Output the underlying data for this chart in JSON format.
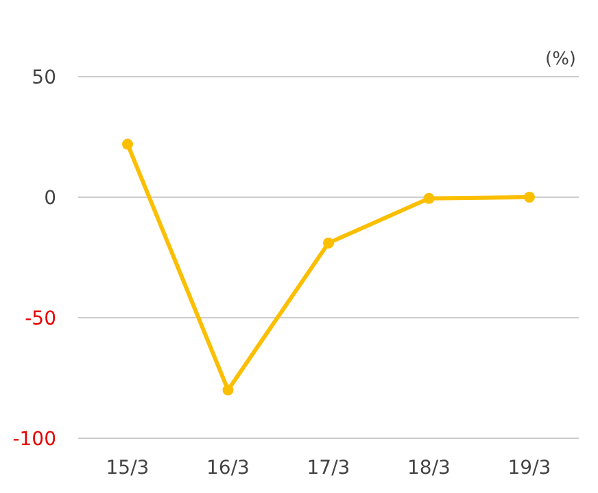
{
  "chart_data": {
    "type": "line",
    "categories": [
      "15/3",
      "16/3",
      "17/3",
      "18/3",
      "19/3"
    ],
    "series": [
      {
        "color": "#fbbf00",
        "values": [
          22,
          -80,
          -19,
          -0.5,
          0
        ]
      }
    ],
    "ylim": [
      -100,
      50
    ],
    "yticks": [
      -100,
      -50,
      0,
      50
    ],
    "grid": "y",
    "marker": "circle",
    "line_style": "solid",
    "legend": false,
    "annotations": [
      "(%)"
    ]
  }
}
